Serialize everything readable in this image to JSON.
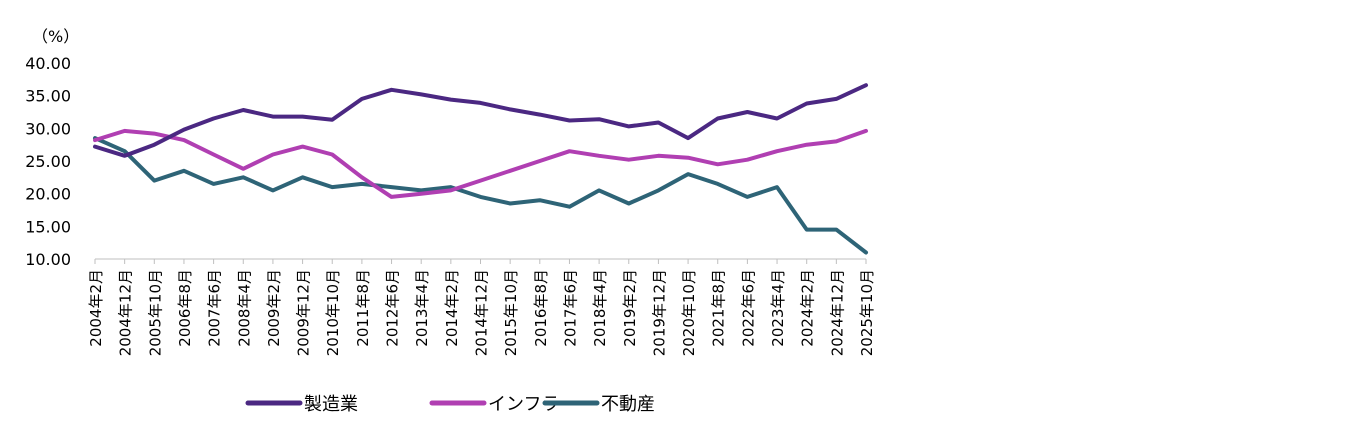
{
  "chart_data": {
    "type": "line",
    "title": "",
    "ylabel": "（%）",
    "xlabel": "",
    "ylim": [
      10,
      40
    ],
    "y_ticks": [
      "40.00",
      "35.00",
      "30.00",
      "25.00",
      "20.00",
      "15.00",
      "10.00"
    ],
    "x_tick_labels": [
      "2004年2月",
      "2004年12月",
      "2005年10月",
      "2006年8月",
      "2007年6月",
      "2008年4月",
      "2009年2月",
      "2009年12月",
      "2010年10月",
      "2011年8月",
      "2012年6月",
      "2013年4月",
      "2014年2月",
      "2014年12月",
      "2015年10月",
      "2016年8月",
      "2017年6月",
      "2018年4月",
      "2019年2月",
      "2019年12月",
      "2020年10月",
      "2021年8月",
      "2022年6月",
      "2023年4月",
      "2024年2月",
      "2024年12月",
      "2025年10月"
    ],
    "x": [
      "2004-02",
      "2004-12",
      "2005-10",
      "2006-08",
      "2007-06",
      "2008-04",
      "2009-02",
      "2009-12",
      "2010-10",
      "2011-08",
      "2012-06",
      "2013-04",
      "2014-02",
      "2014-12",
      "2015-10",
      "2016-08",
      "2017-06",
      "2018-04",
      "2019-02",
      "2019-12",
      "2020-10",
      "2021-08",
      "2022-06",
      "2023-04",
      "2024-02",
      "2024-12",
      "2025-10"
    ],
    "legend_position": "bottom",
    "series": [
      {
        "name": "製造業",
        "color": "#4b2882",
        "values": [
          27.2,
          25.8,
          27.5,
          29.8,
          31.5,
          32.8,
          31.8,
          31.8,
          31.3,
          34.5,
          35.9,
          35.2,
          34.4,
          33.9,
          32.9,
          32.1,
          31.2,
          31.4,
          30.3,
          30.9,
          28.5,
          31.5,
          32.5,
          31.5,
          33.8,
          34.5,
          36.6
        ]
      },
      {
        "name": "インフラ",
        "color": "#b03fb2",
        "values": [
          28.2,
          29.6,
          29.2,
          28.2,
          26.0,
          23.8,
          26.0,
          27.2,
          26.0,
          22.5,
          19.5,
          20.0,
          20.5,
          22.0,
          23.5,
          25.0,
          26.5,
          25.8,
          25.2,
          25.8,
          25.5,
          24.5,
          25.2,
          26.5,
          27.5,
          28.0,
          29.6
        ]
      },
      {
        "name": "不動産",
        "color": "#2e6477",
        "values": [
          28.5,
          26.5,
          22.0,
          23.5,
          21.5,
          22.5,
          20.5,
          22.5,
          21.0,
          21.5,
          21.0,
          20.5,
          21.0,
          19.5,
          18.5,
          19.0,
          18.0,
          20.5,
          18.5,
          20.5,
          23.0,
          21.5,
          19.5,
          21.0,
          14.5,
          14.5,
          11.0
        ]
      }
    ]
  }
}
